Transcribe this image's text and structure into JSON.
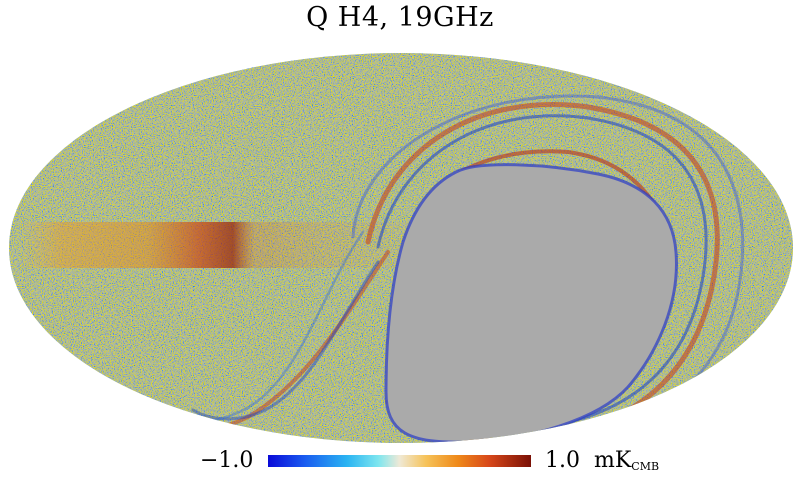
{
  "figure": {
    "title": "Q H4, 19GHz",
    "colorbar": {
      "min_label": "−1.0",
      "max_value": "1.0",
      "unit_main": "mK",
      "unit_sub": "CMB",
      "range": [
        -1.0,
        1.0
      ]
    },
    "colors": {
      "mask_gray": "#aaaaaa",
      "noise_cyan": "#7fd6df",
      "noise_orange": "#e9b15a",
      "galactic_band": "#e08a20",
      "scan_red": "#c23a1a",
      "scan_blue": "#1840c8"
    }
  }
}
